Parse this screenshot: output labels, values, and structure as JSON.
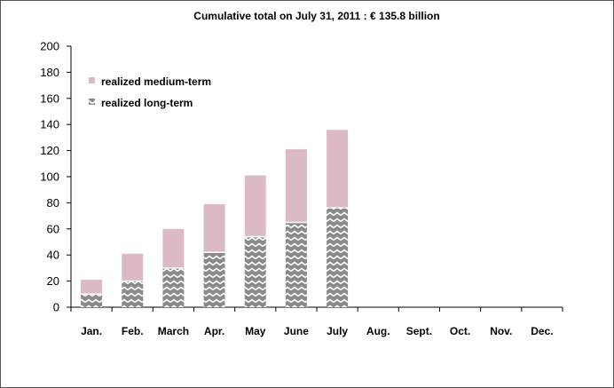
{
  "chart_data": {
    "type": "bar",
    "stacked": true,
    "title": "Cumulative total on July 31, 2011 : € 135.8 billion",
    "xlabel": "",
    "ylabel": "",
    "ylim": [
      0,
      200
    ],
    "yticks": [
      0,
      20,
      40,
      60,
      80,
      100,
      120,
      140,
      160,
      180,
      200
    ],
    "categories": [
      "Jan.",
      "Feb.",
      "March",
      "Apr.",
      "May",
      "June",
      "July",
      "Aug.",
      "Sept.",
      "Oct.",
      "Nov.",
      "Dec."
    ],
    "series": [
      {
        "name": "realized long-term",
        "color": "#8c8c8c",
        "pattern": "zigzag",
        "values": [
          10,
          20,
          30,
          42,
          54,
          65,
          76,
          null,
          null,
          null,
          null,
          null
        ]
      },
      {
        "name": "realized medium-term",
        "color": "#dbb9c5",
        "pattern": "solid",
        "values": [
          11,
          21,
          30,
          37,
          47,
          56,
          59.8,
          null,
          null,
          null,
          null,
          null
        ]
      }
    ],
    "legend": {
      "position": "top-left",
      "order": [
        "realized medium-term",
        "realized long-term"
      ]
    },
    "grid": false
  }
}
